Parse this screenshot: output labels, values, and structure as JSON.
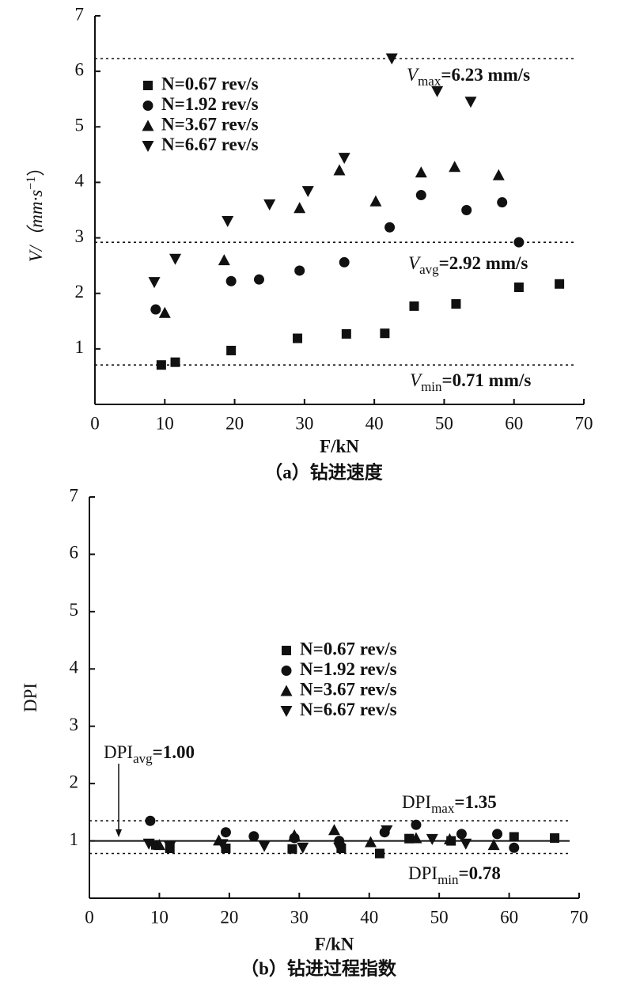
{
  "chart_data": [
    {
      "type": "scatter",
      "caption": "（a）钻进速度",
      "xlabel": "F/kN",
      "ylabel": {
        "base": "V/（mm·s",
        "sup": "−1",
        "end": "）"
      },
      "xlim": [
        0,
        70
      ],
      "ylim": [
        0,
        7
      ],
      "xticks": [
        0,
        10,
        20,
        30,
        40,
        50,
        60,
        70
      ],
      "yticks": [
        1,
        2,
        3,
        4,
        5,
        6,
        7
      ],
      "legend": "upper left",
      "series": [
        {
          "name": "N=0.67 rev/s",
          "marker": "square",
          "color": "#111111",
          "x": [
            9.5,
            11.5,
            19.5,
            29,
            36,
            41.5,
            45.7,
            51.7,
            60.7,
            66.5
          ],
          "values": [
            0.71,
            0.76,
            0.97,
            1.19,
            1.27,
            1.28,
            1.77,
            1.81,
            2.11,
            2.17
          ]
        },
        {
          "name": "N=1.92 rev/s",
          "marker": "circle",
          "color": "#111111",
          "x": [
            8.7,
            19.5,
            23.5,
            29.3,
            35.7,
            42.2,
            46.7,
            53.2,
            58.3,
            60.7
          ],
          "values": [
            1.71,
            2.22,
            2.25,
            2.41,
            2.56,
            3.19,
            3.77,
            3.5,
            3.64,
            2.92
          ]
        },
        {
          "name": "N=3.67 rev/s",
          "marker": "triangle-up",
          "color": "#111111",
          "x": [
            10,
            18.5,
            29.3,
            35,
            40.2,
            46.7,
            51.5,
            57.8
          ],
          "values": [
            1.65,
            2.6,
            3.54,
            4.22,
            3.66,
            4.18,
            4.28,
            4.13
          ]
        },
        {
          "name": "N=6.67 rev/s",
          "marker": "triangle-down",
          "color": "#111111",
          "x": [
            8.5,
            11.5,
            19,
            25,
            30.5,
            35.7,
            42.5,
            49,
            53.8
          ],
          "values": [
            2.2,
            2.62,
            3.3,
            3.6,
            3.84,
            4.44,
            6.23,
            5.64,
            5.45
          ]
        }
      ],
      "hlines": [
        {
          "value": 6.23,
          "style": "dotted"
        },
        {
          "value": 2.92,
          "style": "dotted"
        },
        {
          "value": 0.71,
          "style": "dotted"
        }
      ],
      "annotations": [
        {
          "base": "V",
          "sub": "max",
          "text": "=6.23 mm/s"
        },
        {
          "base": "V",
          "sub": "avg",
          "text": "=2.92 mm/s"
        },
        {
          "base": "V",
          "sub": "min",
          "text": "=0.71 mm/s"
        }
      ]
    },
    {
      "type": "scatter",
      "caption": "（b）钻进过程指数",
      "xlabel": "F/kN",
      "ylabel": {
        "base": "DPI"
      },
      "xlim": [
        0,
        70
      ],
      "ylim": [
        0,
        7
      ],
      "xticks": [
        0,
        10,
        20,
        30,
        40,
        50,
        60,
        70
      ],
      "yticks": [
        1,
        2,
        3,
        4,
        5,
        6,
        7
      ],
      "legend": "center",
      "series": [
        {
          "name": "N=0.67 rev/s",
          "marker": "square",
          "color": "#111111",
          "x": [
            9.5,
            11.5,
            19.5,
            29,
            36,
            41.5,
            45.7,
            51.7,
            60.7,
            66.5
          ],
          "values": [
            0.93,
            0.87,
            0.87,
            0.86,
            0.87,
            0.78,
            1.04,
            1.0,
            1.07,
            1.05
          ]
        },
        {
          "name": "N=1.92 rev/s",
          "marker": "circle",
          "color": "#111111",
          "x": [
            8.7,
            19.5,
            23.5,
            29.3,
            35.7,
            42.2,
            46.7,
            53.2,
            58.3,
            60.7
          ],
          "values": [
            1.35,
            1.15,
            1.08,
            1.05,
            1.0,
            1.15,
            1.28,
            1.12,
            1.12,
            0.88
          ]
        },
        {
          "name": "N=3.67 rev/s",
          "marker": "triangle-up",
          "color": "#111111",
          "x": [
            10,
            18.5,
            29.3,
            35,
            40.2,
            46.7,
            51.5,
            57.8
          ],
          "values": [
            0.93,
            1.01,
            1.1,
            1.19,
            0.98,
            1.05,
            1.03,
            0.93
          ]
        },
        {
          "name": "N=6.67 rev/s",
          "marker": "triangle-down",
          "color": "#111111",
          "x": [
            8.5,
            11.5,
            19,
            25,
            30.5,
            35.7,
            42.5,
            49,
            53.8
          ],
          "values": [
            0.95,
            0.9,
            0.94,
            0.91,
            0.88,
            0.88,
            1.18,
            1.03,
            0.95
          ]
        }
      ],
      "hlines": [
        {
          "value": 1.35,
          "style": "dotted"
        },
        {
          "value": 1.0,
          "style": "solid"
        },
        {
          "value": 0.78,
          "style": "dotted"
        }
      ],
      "annotations": [
        {
          "base": "DPI",
          "sub": "avg",
          "text": "=1.00"
        },
        {
          "base": "DPI",
          "sub": "max",
          "text": "=1.35"
        },
        {
          "base": "DPI",
          "sub": "min",
          "text": "=0.78"
        }
      ]
    }
  ]
}
